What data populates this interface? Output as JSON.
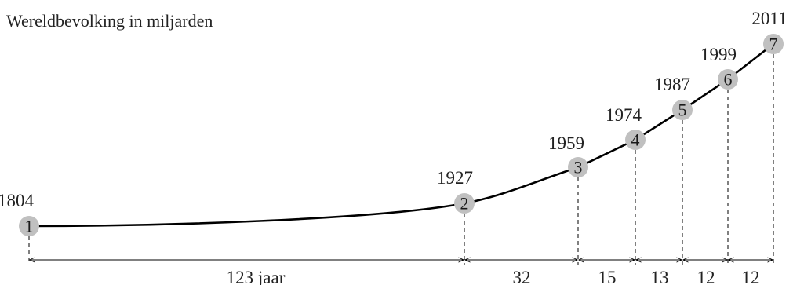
{
  "title": "Wereldbevolking in miljarden",
  "colors": {
    "marker": "#c0c0c0",
    "line": "#000000",
    "text": "#222222"
  },
  "milestones": [
    {
      "number": "1",
      "year": "1804"
    },
    {
      "number": "2",
      "year": "1927"
    },
    {
      "number": "3",
      "year": "1959"
    },
    {
      "number": "4",
      "year": "1974"
    },
    {
      "number": "5",
      "year": "1987"
    },
    {
      "number": "6",
      "year": "1999"
    },
    {
      "number": "7",
      "year": "2011"
    }
  ],
  "intervals": [
    {
      "label": "123 jaar"
    },
    {
      "label": "32"
    },
    {
      "label": "15"
    },
    {
      "label": "13"
    },
    {
      "label": "12"
    },
    {
      "label": "12"
    }
  ]
}
